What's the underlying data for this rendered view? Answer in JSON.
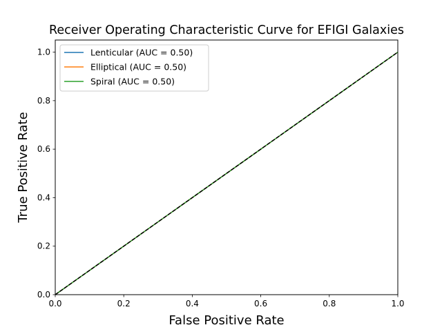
{
  "chart_data": {
    "type": "line",
    "title": "Receiver Operating Characteristic Curve for EFIGI Galaxies",
    "xlabel": "False Positive Rate",
    "ylabel": "True Positive Rate",
    "xlim": [
      0.0,
      1.0
    ],
    "ylim": [
      0.0,
      1.05
    ],
    "x_ticks": [
      0.0,
      0.2,
      0.4,
      0.6,
      0.8,
      1.0
    ],
    "y_ticks": [
      0.0,
      0.2,
      0.4,
      0.6,
      0.8,
      1.0
    ],
    "x_tick_labels": [
      "0.0",
      "0.2",
      "0.4",
      "0.6",
      "0.8",
      "1.0"
    ],
    "y_tick_labels": [
      "0.0",
      "0.2",
      "0.4",
      "0.6",
      "0.8",
      "1.0"
    ],
    "grid": false,
    "legend_position": "upper-left",
    "series": [
      {
        "name": "Lenticular (AUC = 0.50)",
        "color": "#1f77b4",
        "x": [
          0.0,
          1.0
        ],
        "y": [
          0.0,
          1.0
        ]
      },
      {
        "name": "Elliptical (AUC = 0.50)",
        "color": "#ff7f0e",
        "x": [
          0.0,
          1.0
        ],
        "y": [
          0.0,
          1.0
        ]
      },
      {
        "name": "Spiral (AUC = 0.50)",
        "color": "#2ca02c",
        "x": [
          0.0,
          1.0
        ],
        "y": [
          0.0,
          1.0
        ]
      }
    ],
    "reference_line": {
      "color": "#000000",
      "style": "dashed",
      "x": [
        0.0,
        1.0
      ],
      "y": [
        0.0,
        1.0
      ]
    }
  }
}
